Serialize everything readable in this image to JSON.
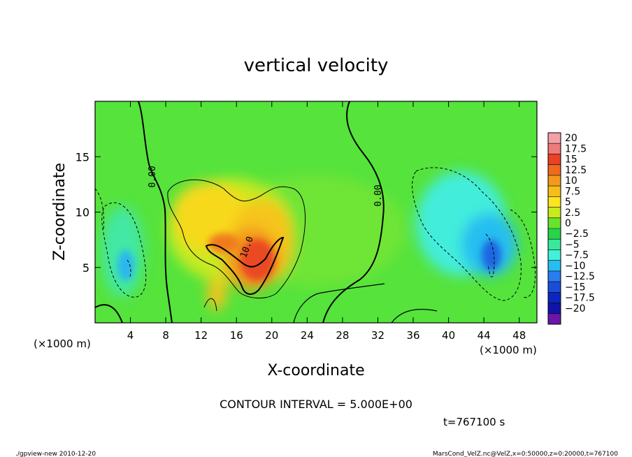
{
  "chart_data": {
    "type": "heatmap",
    "title": "vertical velocity",
    "xlabel": "X-coordinate",
    "ylabel": "Z-coordinate",
    "x_unit_label": "(×1000 m)",
    "z_unit_label": "(×1000 m)",
    "xlim": [
      0,
      50
    ],
    "ylim": [
      0,
      20
    ],
    "x_ticks": [
      4,
      8,
      12,
      16,
      20,
      24,
      28,
      32,
      36,
      40,
      44,
      48
    ],
    "z_ticks": [
      5,
      10,
      15
    ],
    "colorbar": {
      "labels": [
        "20",
        "17.5",
        "15",
        "12.5",
        "10",
        "7.5",
        "5",
        "2.5",
        "0",
        "−2.5",
        "−5",
        "−7.5",
        "−10",
        "−12.5",
        "−15",
        "−17.5",
        "−20"
      ],
      "colors": [
        "#f3a0a6",
        "#ee7a7a",
        "#ea4226",
        "#ed6a1e",
        "#f29a1c",
        "#f7bd1c",
        "#fbe420",
        "#c8ea1e",
        "#68e32c",
        "#27d44a",
        "#3ae89a",
        "#43f0d9",
        "#27bdf0",
        "#2a7cf0",
        "#1b4ed7",
        "#0e26c0",
        "#1014a6",
        "#6b16a8"
      ]
    },
    "contour_labels": [
      "0.00",
      "0.00",
      "10.0"
    ],
    "contour_interval_text": "CONTOUR INTERVAL = 5.000E+00",
    "time_text": "t=767100 s"
  },
  "footer": {
    "left": "./gpview-new  2010-12-20",
    "right": "MarsCond_VelZ.nc@VelZ,x=0:50000,z=0:20000,t=767100"
  }
}
